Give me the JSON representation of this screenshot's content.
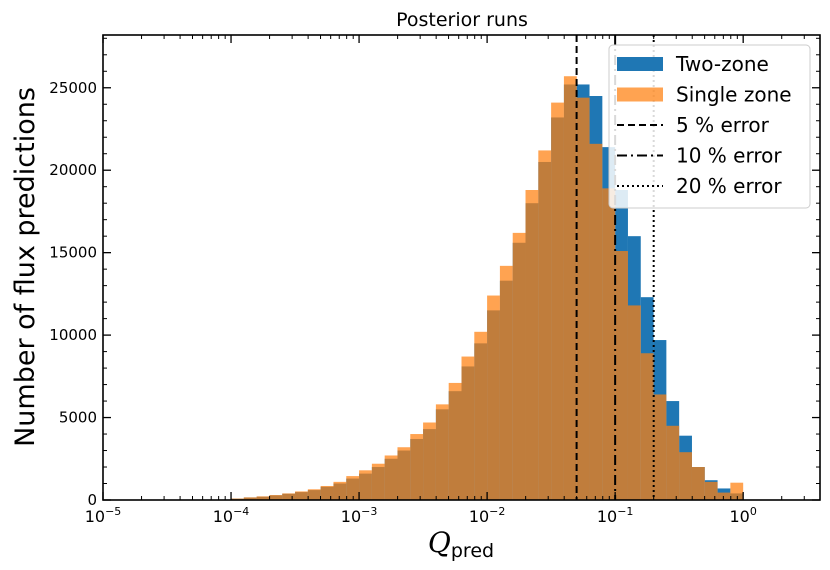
{
  "chart_data": {
    "type": "bar",
    "title": "Posterior runs",
    "xlabel": "Q",
    "xlabel_sub": "pred",
    "ylabel": "Number of flux predictions",
    "xscale": "log",
    "xlim": [
      -5,
      0.6
    ],
    "ylim": [
      0,
      28200
    ],
    "grid": false,
    "legend_position": "top-right",
    "x_ticks": [
      {
        "exp": -5,
        "label": "10",
        "sup": "−5"
      },
      {
        "exp": -4,
        "label": "10",
        "sup": "−4"
      },
      {
        "exp": -3,
        "label": "10",
        "sup": "−3"
      },
      {
        "exp": -2,
        "label": "10",
        "sup": "−2"
      },
      {
        "exp": -1,
        "label": "10",
        "sup": "−1"
      },
      {
        "exp": 0,
        "label": "10",
        "sup": "0"
      }
    ],
    "y_ticks": [
      {
        "value": 0,
        "label": "0"
      },
      {
        "value": 5000,
        "label": "5000"
      },
      {
        "value": 10000,
        "label": "10000"
      },
      {
        "value": 15000,
        "label": "15000"
      },
      {
        "value": 20000,
        "label": "20000"
      },
      {
        "value": 25000,
        "label": "25000"
      }
    ],
    "bin_edges_log10": [
      -4.0,
      -3.9,
      -3.8,
      -3.7,
      -3.6,
      -3.5,
      -3.4,
      -3.3,
      -3.2,
      -3.1,
      -3.0,
      -2.9,
      -2.8,
      -2.7,
      -2.6,
      -2.5,
      -2.4,
      -2.3,
      -2.2,
      -2.1,
      -2.0,
      -1.9,
      -1.8,
      -1.7,
      -1.6,
      -1.5,
      -1.4,
      -1.3,
      -1.2,
      -1.1,
      -1.0,
      -0.9,
      -0.8,
      -0.7,
      -0.6,
      -0.5,
      -0.4,
      -0.3,
      -0.2,
      -0.1,
      0.0
    ],
    "series": [
      {
        "name": "Two-zone",
        "color": "#1f77b4",
        "values": [
          80,
          150,
          200,
          280,
          380,
          480,
          600,
          800,
          1000,
          1300,
          1600,
          2000,
          2500,
          3000,
          3700,
          4300,
          5500,
          6600,
          8100,
          9500,
          11500,
          13300,
          15600,
          18000,
          20500,
          23200,
          25200,
          25200,
          24500,
          21400,
          18800,
          16000,
          12300,
          9700,
          6000,
          3900,
          2000,
          1200,
          700,
          400,
          150
        ]
      },
      {
        "name": "Single zone",
        "color": "#ff7f0e",
        "values": [
          90,
          160,
          220,
          300,
          400,
          520,
          650,
          850,
          1100,
          1450,
          1800,
          2200,
          2700,
          3200,
          4000,
          4700,
          5800,
          7100,
          8700,
          10200,
          12400,
          14200,
          16200,
          18800,
          21200,
          24100,
          25700,
          24400,
          21600,
          18900,
          15100,
          11800,
          8900,
          6400,
          4500,
          2900,
          2000,
          1100,
          450,
          1050,
          500
        ]
      }
    ],
    "vlines": [
      {
        "x": 0.05,
        "label": "5 % error",
        "style": "dashed"
      },
      {
        "x": 0.1,
        "label": "10 % error",
        "style": "dashdot"
      },
      {
        "x": 0.2,
        "label": "20 % error",
        "style": "dotted"
      }
    ]
  }
}
